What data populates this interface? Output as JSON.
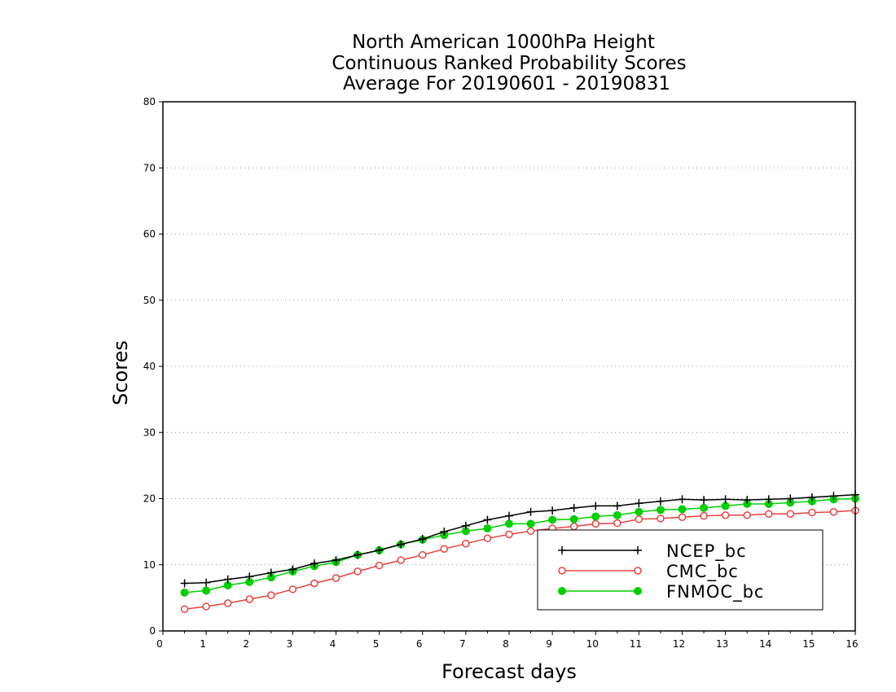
{
  "chart_data": {
    "type": "line",
    "title": [
      "North American 1000hPa Height",
      "Continuous Ranked Probability Scores",
      "Average For 20190601 - 20190831"
    ],
    "xlabel": "Forecast days",
    "ylabel": "Scores",
    "xlim": [
      0,
      16
    ],
    "ylim": [
      0,
      80
    ],
    "xticks": [
      0,
      1,
      2,
      3,
      4,
      5,
      6,
      7,
      8,
      9,
      10,
      11,
      12,
      13,
      14,
      15,
      16
    ],
    "yticks": [
      0,
      10,
      20,
      30,
      40,
      50,
      60,
      70,
      80
    ],
    "grid": "horizontal-dotted",
    "legend_position": "bottom-right",
    "x": [
      0.5,
      1,
      1.5,
      2,
      2.5,
      3,
      3.5,
      4,
      4.5,
      5,
      5.5,
      6,
      6.5,
      7,
      7.5,
      8,
      8.5,
      9,
      9.5,
      10,
      10.5,
      11,
      11.5,
      12,
      12.5,
      13,
      13.5,
      14,
      14.5,
      15,
      15.5,
      16
    ],
    "series": [
      {
        "name": "NCEP_bc",
        "color": "#000000",
        "marker": "plus",
        "values": [
          7.2,
          7.3,
          7.8,
          8.2,
          8.8,
          9.3,
          10.2,
          10.7,
          11.5,
          12.2,
          13.1,
          13.9,
          15.0,
          15.9,
          16.8,
          17.4,
          18.0,
          18.2,
          18.6,
          18.9,
          18.9,
          19.3,
          19.6,
          19.9,
          19.8,
          19.9,
          19.8,
          19.9,
          20.0,
          20.2,
          20.4,
          20.6
        ]
      },
      {
        "name": "CMC_bc",
        "color": "#e8423f",
        "marker": "open-circle",
        "values": [
          3.3,
          3.7,
          4.2,
          4.8,
          5.4,
          6.3,
          7.2,
          8.0,
          9.0,
          9.9,
          10.7,
          11.5,
          12.4,
          13.2,
          14.0,
          14.6,
          15.1,
          15.5,
          15.8,
          16.2,
          16.3,
          16.9,
          17.0,
          17.2,
          17.4,
          17.5,
          17.5,
          17.7,
          17.7,
          17.9,
          18.0,
          18.2
        ]
      },
      {
        "name": "FNMOC_bc",
        "color": "#00d000",
        "marker": "filled-circle",
        "values": [
          5.8,
          6.1,
          6.9,
          7.4,
          8.1,
          9.0,
          9.8,
          10.4,
          11.5,
          12.2,
          13.1,
          13.8,
          14.5,
          15.1,
          15.5,
          16.2,
          16.2,
          16.8,
          16.9,
          17.3,
          17.5,
          18.0,
          18.3,
          18.4,
          18.6,
          18.9,
          19.2,
          19.2,
          19.4,
          19.6,
          19.9,
          20.0
        ]
      }
    ]
  }
}
